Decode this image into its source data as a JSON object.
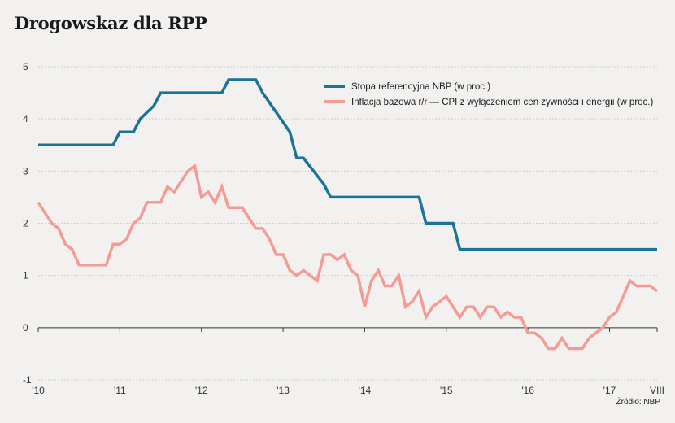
{
  "header": {
    "title": "Drogowskaz dla RPP",
    "source": "Źródło: NBP"
  },
  "colors": {
    "rate": "#1a7399",
    "inflation": "#f59b95",
    "background": "#f2f1ef",
    "grid": "#cfcfcf",
    "zero_line": "#333333"
  },
  "chart_data": {
    "type": "line",
    "title": "Drogowskaz dla RPP",
    "xlabel": "",
    "ylabel": "",
    "ylim": [
      -1,
      5
    ],
    "yticks": [
      "5",
      "4",
      "3",
      "2",
      "1",
      "0",
      "-1"
    ],
    "ytick_values": [
      5,
      4,
      3,
      2,
      1,
      0,
      -1
    ],
    "xticks": [
      "'10",
      "'11",
      "'12",
      "'13",
      "'14",
      "'15",
      "'16",
      "'17",
      "VIII"
    ],
    "xtick_values": [
      2010.0,
      2011.0,
      2012.0,
      2013.0,
      2014.0,
      2015.0,
      2016.0,
      2017.0,
      2017.583
    ],
    "xlim": [
      2010.0,
      2017.583
    ],
    "grid": true,
    "legend_position": "top-right",
    "series": [
      {
        "name": "Stopa referencyjna NBP (w proc.)",
        "color": "#1a7399",
        "x": [
          2010.0,
          2010.917,
          2011.0,
          2011.167,
          2011.25,
          2011.417,
          2011.5,
          2012.25,
          2012.333,
          2012.667,
          2012.75,
          2013.083,
          2013.167,
          2013.25,
          2013.5,
          2013.583,
          2014.667,
          2014.75,
          2015.083,
          2015.167,
          2017.583
        ],
        "y": [
          3.5,
          3.5,
          3.75,
          3.75,
          4.0,
          4.25,
          4.5,
          4.5,
          4.75,
          4.75,
          4.5,
          3.75,
          3.25,
          3.25,
          2.75,
          2.5,
          2.5,
          2.0,
          2.0,
          1.5,
          1.5
        ]
      },
      {
        "name": "Inflacja bazowa r/r — CPI z wyłączeniem cen żywności i energii (w proc.)",
        "color": "#f59b95",
        "x": [
          2010.0,
          2010.083,
          2010.167,
          2010.25,
          2010.333,
          2010.417,
          2010.5,
          2010.583,
          2010.667,
          2010.75,
          2010.833,
          2010.917,
          2011.0,
          2011.083,
          2011.167,
          2011.25,
          2011.333,
          2011.417,
          2011.5,
          2011.583,
          2011.667,
          2011.75,
          2011.833,
          2011.917,
          2012.0,
          2012.083,
          2012.167,
          2012.25,
          2012.333,
          2012.417,
          2012.5,
          2012.583,
          2012.667,
          2012.75,
          2012.833,
          2012.917,
          2013.0,
          2013.083,
          2013.167,
          2013.25,
          2013.333,
          2013.417,
          2013.5,
          2013.583,
          2013.667,
          2013.75,
          2013.833,
          2013.917,
          2014.0,
          2014.083,
          2014.167,
          2014.25,
          2014.333,
          2014.417,
          2014.5,
          2014.583,
          2014.667,
          2014.75,
          2014.833,
          2014.917,
          2015.0,
          2015.083,
          2015.167,
          2015.25,
          2015.333,
          2015.417,
          2015.5,
          2015.583,
          2015.667,
          2015.75,
          2015.833,
          2015.917,
          2016.0,
          2016.083,
          2016.167,
          2016.25,
          2016.333,
          2016.417,
          2016.5,
          2016.583,
          2016.667,
          2016.75,
          2016.833,
          2016.917,
          2017.0,
          2017.083,
          2017.167,
          2017.25,
          2017.333,
          2017.417,
          2017.5,
          2017.583
        ],
        "y": [
          2.4,
          2.2,
          2.0,
          1.9,
          1.6,
          1.5,
          1.2,
          1.2,
          1.2,
          1.2,
          1.2,
          1.6,
          1.6,
          1.7,
          2.0,
          2.1,
          2.4,
          2.4,
          2.4,
          2.7,
          2.6,
          2.8,
          3.0,
          3.1,
          2.5,
          2.6,
          2.4,
          2.7,
          2.3,
          2.3,
          2.3,
          2.1,
          1.9,
          1.9,
          1.7,
          1.4,
          1.4,
          1.1,
          1.0,
          1.1,
          1.0,
          0.9,
          1.4,
          1.4,
          1.3,
          1.4,
          1.1,
          1.0,
          0.4,
          0.9,
          1.1,
          0.8,
          0.8,
          1.0,
          0.4,
          0.5,
          0.7,
          0.2,
          0.4,
          0.5,
          0.6,
          0.4,
          0.2,
          0.4,
          0.4,
          0.2,
          0.4,
          0.4,
          0.2,
          0.3,
          0.2,
          0.2,
          -0.1,
          -0.1,
          -0.2,
          -0.4,
          -0.4,
          -0.2,
          -0.4,
          -0.4,
          -0.4,
          -0.2,
          -0.1,
          0.0,
          0.2,
          0.3,
          0.6,
          0.9,
          0.8,
          0.8,
          0.8,
          0.7
        ]
      }
    ]
  }
}
